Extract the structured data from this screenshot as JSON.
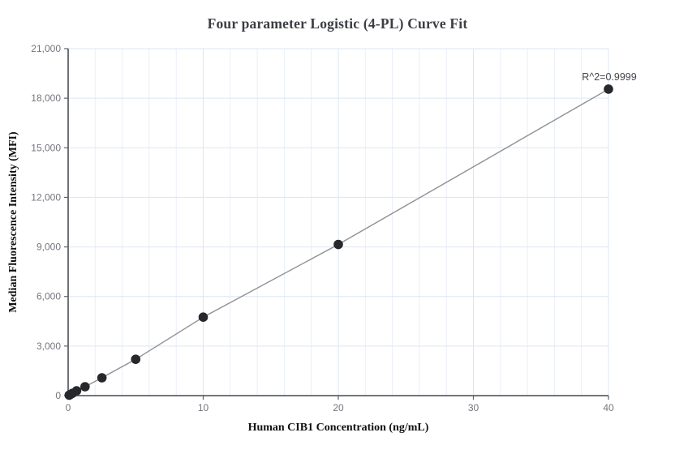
{
  "chart_data": {
    "type": "scatter",
    "title": "Four parameter Logistic (4-PL) Curve Fit",
    "xlabel": "Human CIB1 Concentration (ng/mL)",
    "ylabel": "Median Fluorescence Intensity (MFI)",
    "x": [
      0.078,
      0.156,
      0.313,
      0.625,
      1.25,
      2.5,
      5,
      10,
      20,
      40
    ],
    "y": [
      30,
      65,
      140,
      295,
      540,
      1080,
      2200,
      4750,
      9150,
      18550
    ],
    "xlim": [
      0,
      40
    ],
    "ylim": [
      0,
      21000
    ],
    "x_ticks": [
      0,
      10,
      20,
      30,
      40
    ],
    "y_ticks": [
      0,
      3000,
      6000,
      9000,
      12000,
      15000,
      18000,
      21000
    ],
    "x_minor_grid_step": 2,
    "grid": true,
    "trendline": true,
    "legend": "none",
    "annotation": {
      "text": "R^2=0.9999",
      "x": 40,
      "y": 18550
    },
    "colors": {
      "background": "#ffffff",
      "grid_minor": "#eaeef8",
      "grid_major": "#dee5f3",
      "axis": "#606269",
      "tick_label": "#74767e",
      "point": "#27282c",
      "line": "#8f9094",
      "annotation_text": "#44464c"
    }
  }
}
